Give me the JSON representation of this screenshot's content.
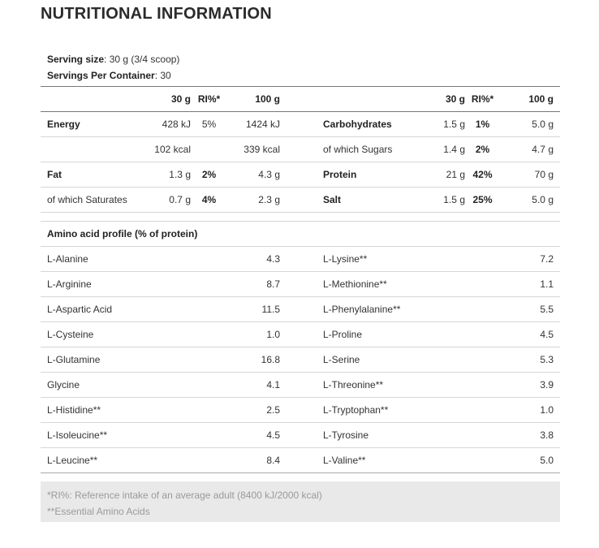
{
  "title": "NUTRITIONAL INFORMATION",
  "serving": {
    "size_label": "Serving size",
    "size_value": ": 30 g (3/4 scoop)",
    "per_container_label": "Servings Per Container",
    "per_container_value": ": 30"
  },
  "table": {
    "header": {
      "col_30g": "30 g",
      "col_ri": "RI%*",
      "col_100g": "100 g"
    },
    "rows": [
      {
        "left": {
          "name": "Energy",
          "v30": "428 kJ",
          "ri": "5%",
          "v100": "1424 kJ"
        },
        "right": {
          "name": "Carbohydrates",
          "v30": "1.5 g",
          "ri": "1%",
          "v100": "5.0 g"
        }
      },
      {
        "left": {
          "name": "",
          "v30": "102 kcal",
          "ri": "",
          "v100": "339 kcal"
        },
        "right": {
          "name": "of which Sugars",
          "v30": "1.4 g",
          "ri": "2%",
          "v100": "4.7 g"
        }
      },
      {
        "left": {
          "name": "Fat",
          "v30": "1.3 g",
          "ri": "2%",
          "v100": "4.3 g"
        },
        "right": {
          "name": "Protein",
          "v30": "21 g",
          "ri": "42%",
          "v100": "70 g"
        }
      },
      {
        "left": {
          "name": "of which Saturates",
          "v30": "0.7 g",
          "ri": "4%",
          "v100": "2.3 g"
        },
        "right": {
          "name": "Salt",
          "v30": "1.5 g",
          "ri": "25%",
          "v100": "5.0 g"
        }
      }
    ]
  },
  "amino": {
    "heading": "Amino acid profile (% of protein)",
    "rows": [
      {
        "left": {
          "name": "L-Alanine",
          "value": "4.3"
        },
        "right": {
          "name": "L-Lysine**",
          "value": "7.2"
        }
      },
      {
        "left": {
          "name": "L-Arginine",
          "value": "8.7"
        },
        "right": {
          "name": "L-Methionine**",
          "value": "1.1"
        }
      },
      {
        "left": {
          "name": "L-Aspartic Acid",
          "value": "11.5"
        },
        "right": {
          "name": "L-Phenylalanine**",
          "value": "5.5"
        }
      },
      {
        "left": {
          "name": "L-Cysteine",
          "value": "1.0"
        },
        "right": {
          "name": "L-Proline",
          "value": "4.5"
        }
      },
      {
        "left": {
          "name": "L-Glutamine",
          "value": "16.8"
        },
        "right": {
          "name": "L-Serine",
          "value": "5.3"
        }
      },
      {
        "left": {
          "name": "Glycine",
          "value": "4.1"
        },
        "right": {
          "name": "L-Threonine**",
          "value": "3.9"
        }
      },
      {
        "left": {
          "name": "L-Histidine**",
          "value": "2.5"
        },
        "right": {
          "name": "L-Tryptophan**",
          "value": "1.0"
        }
      },
      {
        "left": {
          "name": "L-Isoleucine**",
          "value": "4.5"
        },
        "right": {
          "name": "L-Tyrosine",
          "value": "3.8"
        }
      },
      {
        "left": {
          "name": "L-Leucine**",
          "value": "8.4"
        },
        "right": {
          "name": "L-Valine**",
          "value": "5.0"
        }
      }
    ]
  },
  "footnotes": {
    "ri": "*RI%: Reference intake of an average adult (8400 kJ/2000 kcal)",
    "essential": "**Essential Amino Acids"
  }
}
